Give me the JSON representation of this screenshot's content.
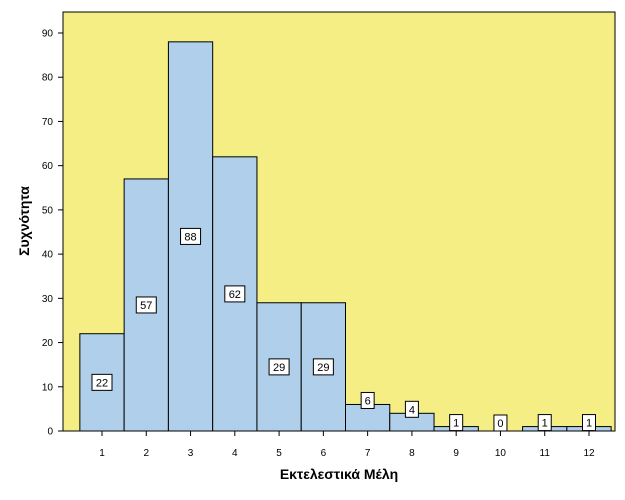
{
  "chart_data": {
    "type": "bar",
    "title": "",
    "xlabel": "Εκτελεστικά Μέλη",
    "ylabel": "Συχνότητα",
    "categories": [
      "1",
      "2",
      "3",
      "4",
      "5",
      "6",
      "7",
      "8",
      "9",
      "10",
      "11",
      "12"
    ],
    "values": [
      22,
      57,
      88,
      62,
      29,
      29,
      6,
      4,
      1,
      0,
      1,
      1
    ],
    "data_labels": [
      "22",
      "57",
      "88",
      "62",
      "29",
      "29",
      "6",
      "4",
      "1",
      "0",
      "1",
      "1"
    ],
    "yticks": [
      "0",
      "10",
      "20",
      "30",
      "40",
      "50",
      "60",
      "70",
      "80",
      "90"
    ],
    "ylim": [
      0,
      95
    ],
    "grid": false,
    "legend": "none",
    "colors": {
      "plot_background": "#F5EE84",
      "bar_fill": "#AFCFEB",
      "bar_stroke": "#000000",
      "label_box": "#FFFFFF"
    }
  }
}
